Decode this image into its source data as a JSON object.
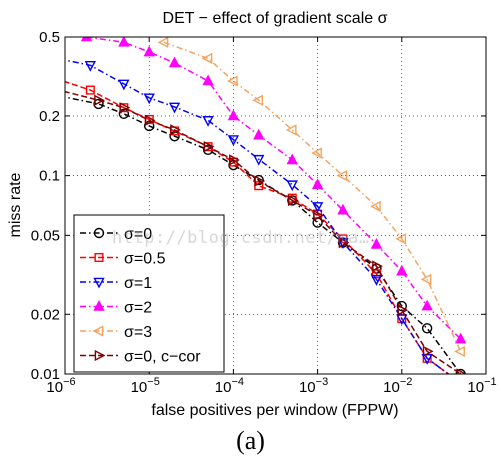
{
  "chart_data": {
    "type": "line",
    "title": "DET − effect of gradient scale σ",
    "xlabel": "false positives per window (FPPW)",
    "ylabel": "miss rate",
    "xscale": "log",
    "yscale": "log",
    "xlim": [
      1e-06,
      0.1
    ],
    "ylim": [
      0.01,
      0.5
    ],
    "grid": true,
    "legend_position": "lower-left",
    "x_ticks": [
      {
        "value": 1e-06,
        "base": "10",
        "exp": "−6"
      },
      {
        "value": 1e-05,
        "base": "10",
        "exp": "−5"
      },
      {
        "value": 0.0001,
        "base": "10",
        "exp": "−4"
      },
      {
        "value": 0.001,
        "base": "10",
        "exp": "−3"
      },
      {
        "value": 0.01,
        "base": "10",
        "exp": "−2"
      },
      {
        "value": 0.1,
        "base": "10",
        "exp": "−1"
      }
    ],
    "y_ticks": [
      {
        "value": 0.01,
        "label": "0.01"
      },
      {
        "value": 0.02,
        "label": "0.02"
      },
      {
        "value": 0.05,
        "label": "0.05"
      },
      {
        "value": 0.1,
        "label": "0.1"
      },
      {
        "value": 0.2,
        "label": "0.2"
      },
      {
        "value": 0.5,
        "label": "0.5"
      }
    ],
    "series": [
      {
        "name": "σ=0",
        "color": "#000000",
        "marker": "circle",
        "dash": "dashdot",
        "x": [
          6e-07,
          2.5e-06,
          5e-06,
          1e-05,
          2e-05,
          5e-05,
          0.0001,
          0.0002,
          0.0005,
          0.001,
          0.002,
          0.005,
          0.01,
          0.02,
          0.05
        ],
        "y": [
          0.26,
          0.23,
          0.205,
          0.178,
          0.158,
          0.135,
          0.113,
          0.095,
          0.075,
          0.058,
          0.046,
          0.034,
          0.022,
          0.017,
          0.01
        ]
      },
      {
        "name": "σ=0.5",
        "color": "#ff0000",
        "marker": "square",
        "dash": "dashed",
        "x": [
          6e-07,
          2e-06,
          5e-06,
          1e-05,
          2e-05,
          5e-05,
          0.0001,
          0.0002,
          0.0005,
          0.001,
          0.002,
          0.005,
          0.01,
          0.02,
          0.05
        ],
        "y": [
          0.32,
          0.27,
          0.22,
          0.192,
          0.168,
          0.14,
          0.117,
          0.089,
          0.077,
          0.064,
          0.048,
          0.032,
          0.019,
          0.012,
          0.009
        ]
      },
      {
        "name": "σ=1",
        "color": "#0000ff",
        "marker": "triangle-down",
        "dash": "dashdot",
        "x": [
          6e-07,
          2e-06,
          5e-06,
          1e-05,
          2e-05,
          5e-05,
          0.0001,
          0.0002,
          0.0005,
          0.001,
          0.002,
          0.005,
          0.01,
          0.02,
          0.05
        ],
        "y": [
          0.4,
          0.36,
          0.29,
          0.247,
          0.222,
          0.19,
          0.152,
          0.121,
          0.09,
          0.07,
          0.046,
          0.03,
          0.019,
          0.012,
          0.009
        ]
      },
      {
        "name": "σ=2",
        "color": "#ff00ff",
        "marker": "triangle-up",
        "dash": "dashdot",
        "x": [
          1.8e-06,
          5e-06,
          1e-05,
          2e-05,
          5e-05,
          0.0001,
          0.0002,
          0.0005,
          0.001,
          0.002,
          0.005,
          0.01,
          0.02,
          0.05
        ],
        "y": [
          0.5,
          0.47,
          0.42,
          0.37,
          0.3,
          0.2,
          0.16,
          0.12,
          0.09,
          0.067,
          0.045,
          0.033,
          0.022,
          0.015
        ]
      },
      {
        "name": "σ=3",
        "color": "#f4a460",
        "marker": "triangle-left",
        "dash": "dashdot",
        "x": [
          1.5e-05,
          5e-05,
          0.0001,
          0.0002,
          0.0005,
          0.001,
          0.002,
          0.005,
          0.01,
          0.02,
          0.05
        ],
        "y": [
          0.47,
          0.39,
          0.3,
          0.24,
          0.17,
          0.13,
          0.1,
          0.07,
          0.048,
          0.03,
          0.013
        ]
      },
      {
        "name": "σ=0, c−cor",
        "color": "#800000",
        "marker": "triangle-right",
        "dash": "dashed",
        "x": [
          6e-07,
          2.5e-06,
          5e-06,
          1e-05,
          2e-05,
          5e-05,
          0.0001,
          0.0002,
          0.0005,
          0.001,
          0.002,
          0.005,
          0.01,
          0.02,
          0.05
        ],
        "y": [
          0.28,
          0.24,
          0.22,
          0.19,
          0.17,
          0.14,
          0.12,
          0.094,
          0.075,
          0.063,
          0.046,
          0.035,
          0.021,
          0.013,
          0.01
        ]
      }
    ]
  },
  "caption": "(a)",
  "watermark": "http://blog.csdn.net/ma…"
}
